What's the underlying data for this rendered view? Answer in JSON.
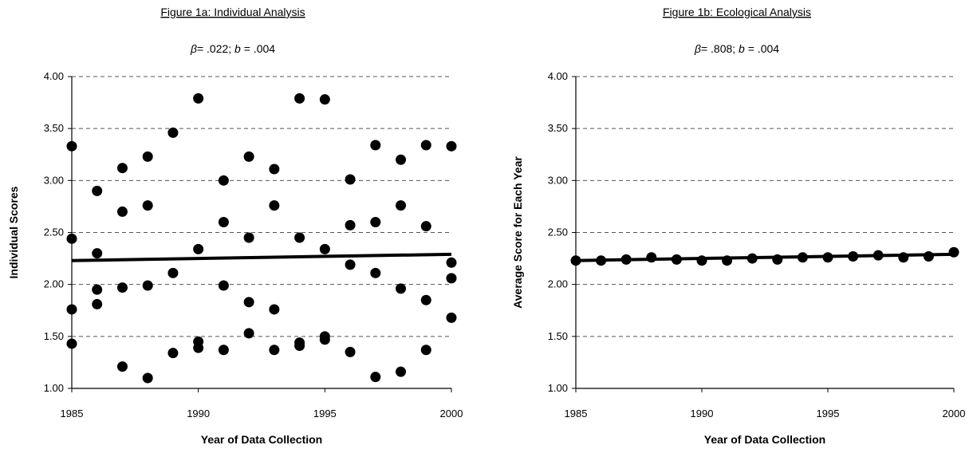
{
  "chart_data": [
    {
      "type": "scatter",
      "title": "Figure 1a: Individual Analysis",
      "subtitle_beta_label": "β",
      "subtitle_beta_value": "= .022; ",
      "subtitle_b_label": "b",
      "subtitle_b_value": " =  .004",
      "xlabel": "Year of Data Collection",
      "ylabel": "Individual  Scores",
      "xlim": [
        1985,
        2000
      ],
      "ylim": [
        1.0,
        4.0
      ],
      "xticks": [
        "1985",
        "1990",
        "1995",
        "2000"
      ],
      "yticks": [
        "1.00",
        "1.50",
        "2.00",
        "2.50",
        "3.00",
        "3.50",
        "4.00"
      ],
      "grid": "horizontal dashed",
      "points": [
        {
          "x": 1985,
          "y": 3.33
        },
        {
          "x": 1985,
          "y": 2.44
        },
        {
          "x": 1985,
          "y": 1.76
        },
        {
          "x": 1985,
          "y": 1.43
        },
        {
          "x": 1986,
          "y": 2.9
        },
        {
          "x": 1986,
          "y": 2.3
        },
        {
          "x": 1986,
          "y": 1.95
        },
        {
          "x": 1986,
          "y": 1.81
        },
        {
          "x": 1987,
          "y": 3.12
        },
        {
          "x": 1987,
          "y": 2.7
        },
        {
          "x": 1987,
          "y": 1.97
        },
        {
          "x": 1987,
          "y": 1.21
        },
        {
          "x": 1988,
          "y": 3.23
        },
        {
          "x": 1988,
          "y": 2.76
        },
        {
          "x": 1988,
          "y": 1.99
        },
        {
          "x": 1988,
          "y": 1.1
        },
        {
          "x": 1989,
          "y": 3.46
        },
        {
          "x": 1989,
          "y": 2.11
        },
        {
          "x": 1989,
          "y": 1.34
        },
        {
          "x": 1990,
          "y": 3.79
        },
        {
          "x": 1990,
          "y": 2.34
        },
        {
          "x": 1990,
          "y": 1.45
        },
        {
          "x": 1990,
          "y": 1.39
        },
        {
          "x": 1991,
          "y": 3.0
        },
        {
          "x": 1991,
          "y": 2.6
        },
        {
          "x": 1991,
          "y": 1.99
        },
        {
          "x": 1991,
          "y": 1.37
        },
        {
          "x": 1992,
          "y": 3.23
        },
        {
          "x": 1992,
          "y": 2.45
        },
        {
          "x": 1992,
          "y": 1.83
        },
        {
          "x": 1992,
          "y": 1.53
        },
        {
          "x": 1993,
          "y": 3.11
        },
        {
          "x": 1993,
          "y": 2.76
        },
        {
          "x": 1993,
          "y": 1.76
        },
        {
          "x": 1993,
          "y": 1.37
        },
        {
          "x": 1994,
          "y": 3.79
        },
        {
          "x": 1994,
          "y": 2.45
        },
        {
          "x": 1994,
          "y": 1.44
        },
        {
          "x": 1994,
          "y": 1.41
        },
        {
          "x": 1995,
          "y": 3.78
        },
        {
          "x": 1995,
          "y": 2.34
        },
        {
          "x": 1995,
          "y": 1.5
        },
        {
          "x": 1995,
          "y": 1.47
        },
        {
          "x": 1996,
          "y": 3.01
        },
        {
          "x": 1996,
          "y": 2.57
        },
        {
          "x": 1996,
          "y": 2.19
        },
        {
          "x": 1996,
          "y": 1.35
        },
        {
          "x": 1997,
          "y": 3.34
        },
        {
          "x": 1997,
          "y": 2.6
        },
        {
          "x": 1997,
          "y": 2.11
        },
        {
          "x": 1997,
          "y": 1.11
        },
        {
          "x": 1998,
          "y": 3.2
        },
        {
          "x": 1998,
          "y": 2.76
        },
        {
          "x": 1998,
          "y": 1.96
        },
        {
          "x": 1998,
          "y": 1.16
        },
        {
          "x": 1999,
          "y": 3.34
        },
        {
          "x": 1999,
          "y": 2.56
        },
        {
          "x": 1999,
          "y": 1.85
        },
        {
          "x": 1999,
          "y": 1.37
        },
        {
          "x": 2000,
          "y": 3.33
        },
        {
          "x": 2000,
          "y": 2.21
        },
        {
          "x": 2000,
          "y": 2.06
        },
        {
          "x": 2000,
          "y": 1.68
        }
      ],
      "trendline": {
        "x": [
          1985,
          2000
        ],
        "y": [
          2.23,
          2.29
        ]
      }
    },
    {
      "type": "scatter",
      "title": "Figure 1b: Ecological Analysis",
      "subtitle_beta_label": "β",
      "subtitle_beta_value": "= .808; ",
      "subtitle_b_label": "b",
      "subtitle_b_value": " =  .004",
      "xlabel": "Year of Data Collection",
      "ylabel": "Average Score for Each Year",
      "xlim": [
        1985,
        2000
      ],
      "ylim": [
        1.0,
        4.0
      ],
      "xticks": [
        "1985",
        "1990",
        "1995",
        "2000"
      ],
      "yticks": [
        "1.00",
        "1.50",
        "2.00",
        "2.50",
        "3.00",
        "3.50",
        "4.00"
      ],
      "grid": "horizontal dashed",
      "points": [
        {
          "x": 1985,
          "y": 2.23
        },
        {
          "x": 1986,
          "y": 2.23
        },
        {
          "x": 1987,
          "y": 2.24
        },
        {
          "x": 1988,
          "y": 2.26
        },
        {
          "x": 1989,
          "y": 2.24
        },
        {
          "x": 1990,
          "y": 2.23
        },
        {
          "x": 1991,
          "y": 2.23
        },
        {
          "x": 1992,
          "y": 2.25
        },
        {
          "x": 1993,
          "y": 2.24
        },
        {
          "x": 1994,
          "y": 2.26
        },
        {
          "x": 1995,
          "y": 2.26
        },
        {
          "x": 1996,
          "y": 2.27
        },
        {
          "x": 1997,
          "y": 2.28
        },
        {
          "x": 1998,
          "y": 2.26
        },
        {
          "x": 1999,
          "y": 2.27
        },
        {
          "x": 2000,
          "y": 2.31
        }
      ],
      "trendline": {
        "x": [
          1985,
          2000
        ],
        "y": [
          2.23,
          2.29
        ]
      }
    }
  ]
}
